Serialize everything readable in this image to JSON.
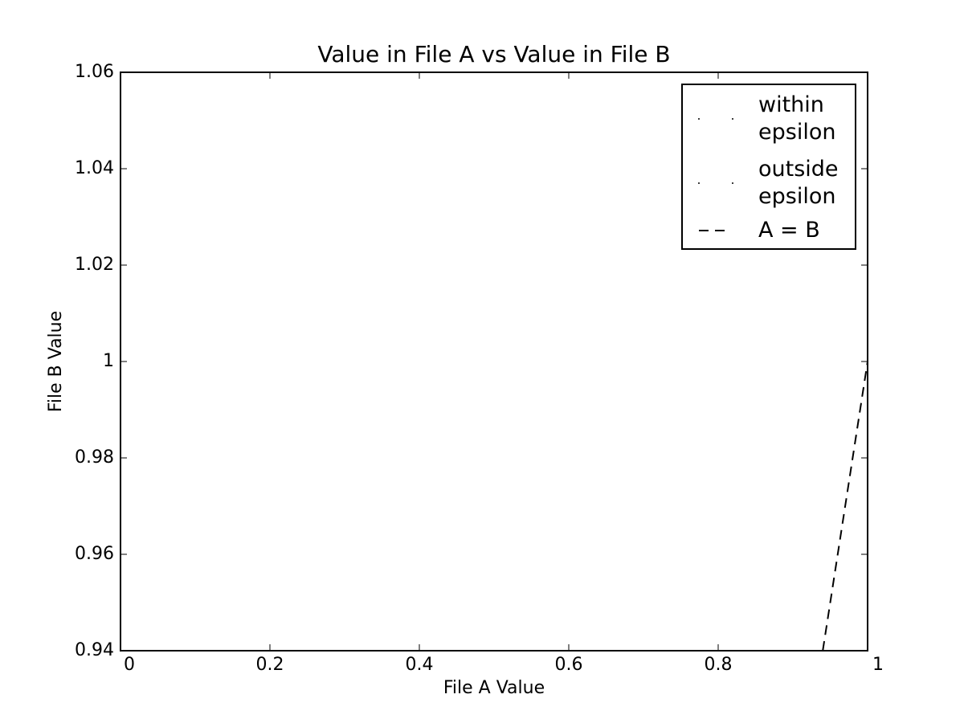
{
  "chart_data": {
    "type": "line",
    "title": "Value in File A vs Value in File B",
    "x_label": "File A Value",
    "y_label": "File B Value",
    "xlim": [
      0,
      1
    ],
    "xticks": [
      0,
      0.2,
      0.4,
      0.6,
      0.8,
      1
    ],
    "ylim": [
      0.94,
      1.06
    ],
    "yticks": [
      0.94,
      0.96,
      0.98,
      1,
      1.02,
      1.04,
      1.06
    ],
    "grid": false,
    "legend_position": "upper right",
    "series": [
      {
        "name": "within\nepsilon",
        "color": "#000000",
        "style": "points",
        "x": [],
        "values": []
      },
      {
        "name": "outside\nepsilon",
        "color": "#000000",
        "style": "points",
        "x": [],
        "values": []
      },
      {
        "name": "A = B",
        "color": "#000000",
        "style": "dashed",
        "x": [
          0.94,
          1
        ],
        "values": [
          0.94,
          1
        ]
      }
    ]
  }
}
